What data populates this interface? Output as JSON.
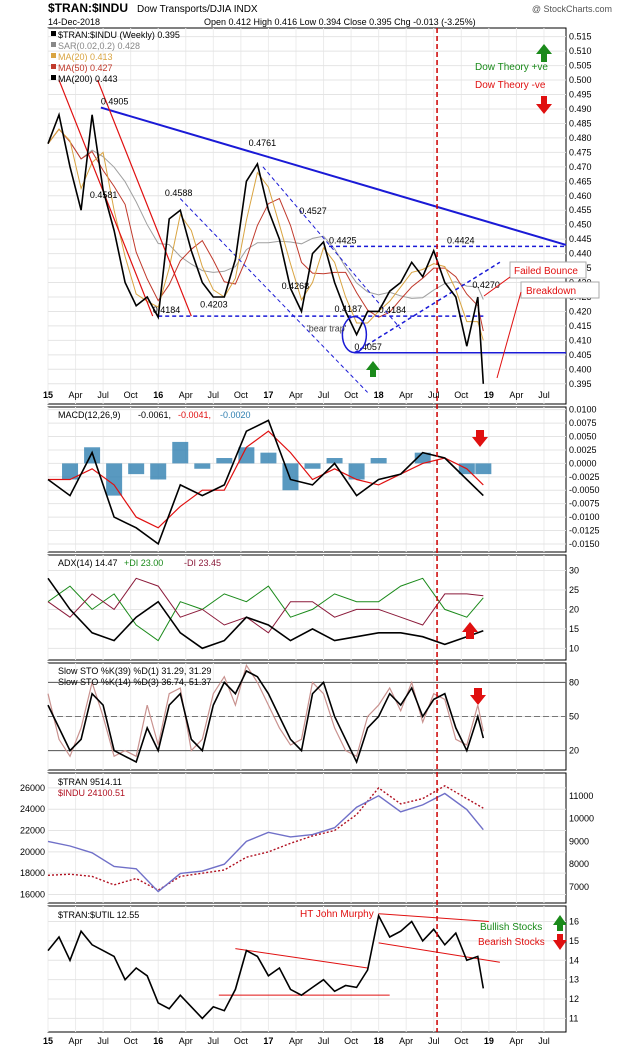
{
  "header": {
    "symbol": "$TRAN:$INDU",
    "desc": "Dow Transports/DJIA INDX",
    "watermark": "@ StockCharts.com",
    "date": "14-Dec-2018",
    "ohlc": "Open 0.412  High 0.416  Low 0.394  Close 0.395  Chg -0.013 (-3.25%)"
  },
  "x_axis": {
    "labels": [
      "15",
      "Apr",
      "Jul",
      "Oct",
      "16",
      "Apr",
      "Jul",
      "Oct",
      "17",
      "Apr",
      "Jul",
      "Oct",
      "18",
      "Apr",
      "Jul",
      "Oct",
      "19",
      "Apr",
      "Jul"
    ]
  },
  "colors": {
    "price": "#000000",
    "trend": "#1a1ad6",
    "red": "#e01010",
    "green": "#1a8a1a",
    "ma20": "#d9a441",
    "ma50": "#c0392b",
    "ma200": "#a0a0a0",
    "macd_hist": "#2f7fb0"
  },
  "chart_data": [
    {
      "type": "line",
      "panel": "price",
      "title": "$TRAN:$INDU (Weekly) 0.395",
      "legend": [
        "$TRAN:$INDU (Weekly) 0.395",
        "SAR(0.02,0.2) 0.428",
        "MA(20) 0.413",
        "MA(50) 0.427",
        "MA(200) 0.443"
      ],
      "ylim": [
        0.388,
        0.518
      ],
      "yticks": [
        0.395,
        0.4,
        0.405,
        0.41,
        0.415,
        0.42,
        0.425,
        0.43,
        0.435,
        0.44,
        0.445,
        0.45,
        0.455,
        0.46,
        0.465,
        0.47,
        0.475,
        0.48,
        0.485,
        0.49,
        0.495,
        0.5,
        0.505,
        0.51,
        0.515
      ],
      "ytick_labels": [
        "0.395",
        "0.400",
        "0.405",
        "0.410",
        "0.415",
        "0.420",
        "0.425",
        "0.430",
        "0.435",
        "0.440",
        "0.445",
        "0.450",
        "0.455",
        "0.460",
        "0.465",
        "0.470",
        "0.475",
        "0.480",
        "0.485",
        "0.490",
        "0.495",
        "0.500",
        "0.505",
        "0.510",
        "0.515"
      ],
      "x": [
        2015.0,
        2015.1,
        2015.2,
        2015.3,
        2015.4,
        2015.5,
        2015.6,
        2015.7,
        2015.8,
        2015.9,
        2016.0,
        2016.1,
        2016.2,
        2016.3,
        2016.4,
        2016.5,
        2016.6,
        2016.7,
        2016.8,
        2016.9,
        2017.0,
        2017.1,
        2017.2,
        2017.3,
        2017.4,
        2017.5,
        2017.6,
        2017.7,
        2017.8,
        2017.9,
        2018.0,
        2018.1,
        2018.2,
        2018.3,
        2018.4,
        2018.5,
        2018.6,
        2018.7,
        2018.8,
        2018.9,
        2018.95
      ],
      "values": [
        0.478,
        0.488,
        0.47,
        0.455,
        0.488,
        0.462,
        0.448,
        0.43,
        0.422,
        0.425,
        0.418,
        0.452,
        0.455,
        0.441,
        0.43,
        0.425,
        0.425,
        0.438,
        0.465,
        0.471,
        0.455,
        0.445,
        0.428,
        0.42,
        0.44,
        0.444,
        0.43,
        0.42,
        0.412,
        0.42,
        0.42,
        0.427,
        0.43,
        0.437,
        0.432,
        0.441,
        0.43,
        0.425,
        0.408,
        0.425,
        0.395
      ],
      "labels": [
        {
          "text": "0.4905",
          "x": 2015.48,
          "y": 0.4905
        },
        {
          "text": "0.4581",
          "x": 2015.38,
          "y": 0.4581
        },
        {
          "text": "0.4588",
          "x": 2016.06,
          "y": 0.4588
        },
        {
          "text": "0.4184",
          "x": 2015.95,
          "y": 0.4184
        },
        {
          "text": "0.4203",
          "x": 2016.38,
          "y": 0.4203
        },
        {
          "text": "0.4761",
          "x": 2016.82,
          "y": 0.4761
        },
        {
          "text": "0.4527",
          "x": 2017.28,
          "y": 0.4527
        },
        {
          "text": "0.4268",
          "x": 2017.12,
          "y": 0.4268
        },
        {
          "text": "0.4425",
          "x": 2017.55,
          "y": 0.4425
        },
        {
          "text": "0.4187",
          "x": 2017.6,
          "y": 0.4187
        },
        {
          "text": "0.4184",
          "x": 2018.0,
          "y": 0.4184
        },
        {
          "text": "0.4057",
          "x": 2017.78,
          "y": 0.4057
        },
        {
          "text": "0.4424",
          "x": 2018.62,
          "y": 0.4424
        },
        {
          "text": "0.4270",
          "x": 2018.85,
          "y": 0.427
        }
      ],
      "annotations": [
        "'bear trap'",
        "Failed Bounce",
        "Breakdown",
        "Dow Theory +ve",
        "Dow Theory -ve"
      ]
    },
    {
      "type": "line",
      "panel": "macd",
      "legend": [
        "MACD(12,26,9)",
        "-0.0061,",
        "-0.0041,",
        "-0.0020"
      ],
      "ylim": [
        -0.0165,
        0.0105
      ],
      "ytick_labels": [
        "0.0100",
        "0.0075",
        "0.0050",
        "0.0025",
        "0.0000",
        "-0.0025",
        "-0.0050",
        "-0.0075",
        "-0.0100",
        "-0.0125",
        "-0.0150"
      ],
      "yticks": [
        0.01,
        0.0075,
        0.005,
        0.0025,
        0,
        -0.0025,
        -0.005,
        -0.0075,
        -0.01,
        -0.0125,
        -0.015
      ],
      "x": [
        2015.0,
        2015.2,
        2015.4,
        2015.6,
        2015.8,
        2016.0,
        2016.2,
        2016.4,
        2016.6,
        2016.8,
        2017.0,
        2017.2,
        2017.4,
        2017.6,
        2017.8,
        2018.0,
        2018.2,
        2018.4,
        2018.6,
        2018.8,
        2018.95
      ],
      "series": [
        {
          "name": "MACD",
          "values": [
            -0.003,
            -0.006,
            0.002,
            -0.01,
            -0.012,
            -0.015,
            -0.004,
            -0.006,
            -0.004,
            0.006,
            0.008,
            -0.003,
            -0.004,
            0.0,
            -0.006,
            -0.003,
            -0.002,
            0.002,
            0.001,
            -0.003,
            -0.006
          ]
        },
        {
          "name": "Signal",
          "values": [
            -0.003,
            -0.003,
            -0.001,
            -0.004,
            -0.01,
            -0.012,
            -0.008,
            -0.005,
            -0.005,
            0.003,
            0.006,
            0.002,
            -0.003,
            -0.001,
            -0.003,
            -0.004,
            -0.002,
            0.0,
            0.001,
            -0.001,
            -0.004
          ]
        }
      ]
    },
    {
      "type": "line",
      "panel": "adx",
      "legend": [
        "ADX(14) 14.47",
        "+DI 23.00",
        "-DI 23.45"
      ],
      "ylim": [
        7,
        34
      ],
      "yticks": [
        10,
        15,
        20,
        25,
        30
      ],
      "ytick_labels": [
        "10",
        "15",
        "20",
        "25",
        "30"
      ],
      "x": [
        2015.0,
        2015.2,
        2015.4,
        2015.6,
        2015.8,
        2016.0,
        2016.2,
        2016.4,
        2016.6,
        2016.8,
        2017.0,
        2017.2,
        2017.4,
        2017.6,
        2017.8,
        2018.0,
        2018.2,
        2018.4,
        2018.6,
        2018.8,
        2018.95
      ],
      "series": [
        {
          "name": "ADX",
          "values": [
            28,
            20,
            14,
            12,
            18,
            22,
            14,
            10,
            12,
            18,
            16,
            12,
            15,
            12,
            13,
            14,
            14,
            13,
            11,
            13,
            14.5
          ]
        },
        {
          "name": "+DI",
          "values": [
            22,
            26,
            20,
            24,
            16,
            12,
            22,
            20,
            24,
            22,
            26,
            18,
            20,
            24,
            22,
            22,
            26,
            28,
            20,
            18,
            23
          ]
        },
        {
          "name": "-DI",
          "values": [
            22,
            18,
            24,
            20,
            28,
            26,
            18,
            20,
            16,
            18,
            14,
            22,
            22,
            18,
            20,
            20,
            18,
            16,
            24,
            24,
            23.5
          ]
        }
      ]
    },
    {
      "type": "line",
      "panel": "sto",
      "legend": [
        "Slow STO %K(39) %D(1) 31.29, 31.29",
        "Slow STO %K(14) %D(3) 36.74, 51.37"
      ],
      "ylim": [
        3,
        97
      ],
      "yticks": [
        20,
        50,
        80
      ],
      "ytick_labels": [
        "20",
        "50",
        "80"
      ],
      "x": [
        2015.0,
        2015.1,
        2015.2,
        2015.3,
        2015.4,
        2015.5,
        2015.6,
        2015.7,
        2015.8,
        2015.9,
        2016.0,
        2016.1,
        2016.2,
        2016.3,
        2016.4,
        2016.5,
        2016.6,
        2016.7,
        2016.8,
        2016.9,
        2017.0,
        2017.1,
        2017.2,
        2017.3,
        2017.4,
        2017.5,
        2017.6,
        2017.7,
        2017.8,
        2017.9,
        2018.0,
        2018.1,
        2018.2,
        2018.3,
        2018.4,
        2018.5,
        2018.6,
        2018.7,
        2018.8,
        2018.9,
        2018.95
      ],
      "series": [
        {
          "name": "%K(39)",
          "values": [
            60,
            40,
            20,
            30,
            70,
            60,
            20,
            15,
            10,
            40,
            20,
            60,
            70,
            30,
            20,
            60,
            80,
            70,
            90,
            85,
            70,
            50,
            30,
            20,
            70,
            80,
            50,
            30,
            10,
            40,
            50,
            70,
            60,
            75,
            50,
            65,
            70,
            40,
            20,
            50,
            31
          ]
        },
        {
          "name": "%K(14)",
          "values": [
            70,
            30,
            15,
            40,
            80,
            50,
            15,
            20,
            15,
            60,
            25,
            70,
            75,
            20,
            30,
            70,
            85,
            60,
            95,
            80,
            60,
            40,
            25,
            30,
            80,
            70,
            40,
            20,
            15,
            50,
            60,
            75,
            55,
            80,
            45,
            70,
            65,
            30,
            25,
            60,
            37
          ]
        }
      ]
    },
    {
      "type": "line",
      "panel": "tran_indu",
      "legend": [
        "$TRAN 9514.11",
        "$INDU 24100.51"
      ],
      "ylim_left": [
        15200,
        27400
      ],
      "yticks_left": [
        16000,
        18000,
        20000,
        22000,
        24000,
        26000
      ],
      "ytick_labels_left": [
        "16000",
        "18000",
        "20000",
        "22000",
        "24000",
        "26000"
      ],
      "ylim_right": [
        6300,
        12000
      ],
      "yticks_right": [
        7000,
        8000,
        9000,
        10000,
        11000
      ],
      "ytick_labels_right": [
        "7000",
        "8000",
        "9000",
        "10000",
        "11000"
      ],
      "x": [
        2015.0,
        2015.2,
        2015.4,
        2015.6,
        2015.8,
        2016.0,
        2016.2,
        2016.4,
        2016.6,
        2016.8,
        2017.0,
        2017.2,
        2017.4,
        2017.6,
        2017.8,
        2018.0,
        2018.2,
        2018.4,
        2018.6,
        2018.8,
        2018.95
      ],
      "series": [
        {
          "name": "$TRAN",
          "values": [
            9000,
            8800,
            8500,
            7900,
            7800,
            6800,
            7600,
            7700,
            8000,
            9000,
            9400,
            9200,
            9300,
            9600,
            10500,
            11000,
            10300,
            10600,
            11100,
            10400,
            9514
          ]
        },
        {
          "name": "$INDU",
          "values": [
            17800,
            17900,
            17700,
            16900,
            17500,
            16400,
            17700,
            18000,
            18300,
            19500,
            20000,
            20800,
            21500,
            22000,
            23500,
            26000,
            24500,
            25000,
            26200,
            25000,
            24100
          ]
        }
      ]
    },
    {
      "type": "line",
      "panel": "tran_util",
      "legend": [
        "$TRAN:$UTIL 12.55"
      ],
      "annotations": [
        "HT John Murphy",
        "Bullish Stocks",
        "Bearish Stocks"
      ],
      "ylim": [
        10.3,
        16.8
      ],
      "yticks": [
        11,
        12,
        13,
        14,
        15,
        16
      ],
      "ytick_labels": [
        "11",
        "12",
        "13",
        "14",
        "15",
        "16"
      ],
      "x": [
        2015.0,
        2015.1,
        2015.2,
        2015.3,
        2015.4,
        2015.5,
        2015.6,
        2015.7,
        2015.8,
        2015.9,
        2016.0,
        2016.1,
        2016.2,
        2016.3,
        2016.4,
        2016.5,
        2016.6,
        2016.7,
        2016.8,
        2016.9,
        2017.0,
        2017.1,
        2017.2,
        2017.3,
        2017.4,
        2017.5,
        2017.6,
        2017.7,
        2017.8,
        2017.9,
        2018.0,
        2018.1,
        2018.2,
        2018.3,
        2018.4,
        2018.5,
        2018.6,
        2018.7,
        2018.8,
        2018.9,
        2018.95
      ],
      "values": [
        14.5,
        15.2,
        14.0,
        15.5,
        14.8,
        14.5,
        14.2,
        13.0,
        13.6,
        13.2,
        11.8,
        11.5,
        12.2,
        11.6,
        11.0,
        11.6,
        11.4,
        12.5,
        14.5,
        14.2,
        13.2,
        13.6,
        12.5,
        12.2,
        12.6,
        13.0,
        12.4,
        12.7,
        12.6,
        13.5,
        16.3,
        15.2,
        15.5,
        16.0,
        15.0,
        15.6,
        14.8,
        15.4,
        14.0,
        14.2,
        12.55
      ]
    }
  ]
}
